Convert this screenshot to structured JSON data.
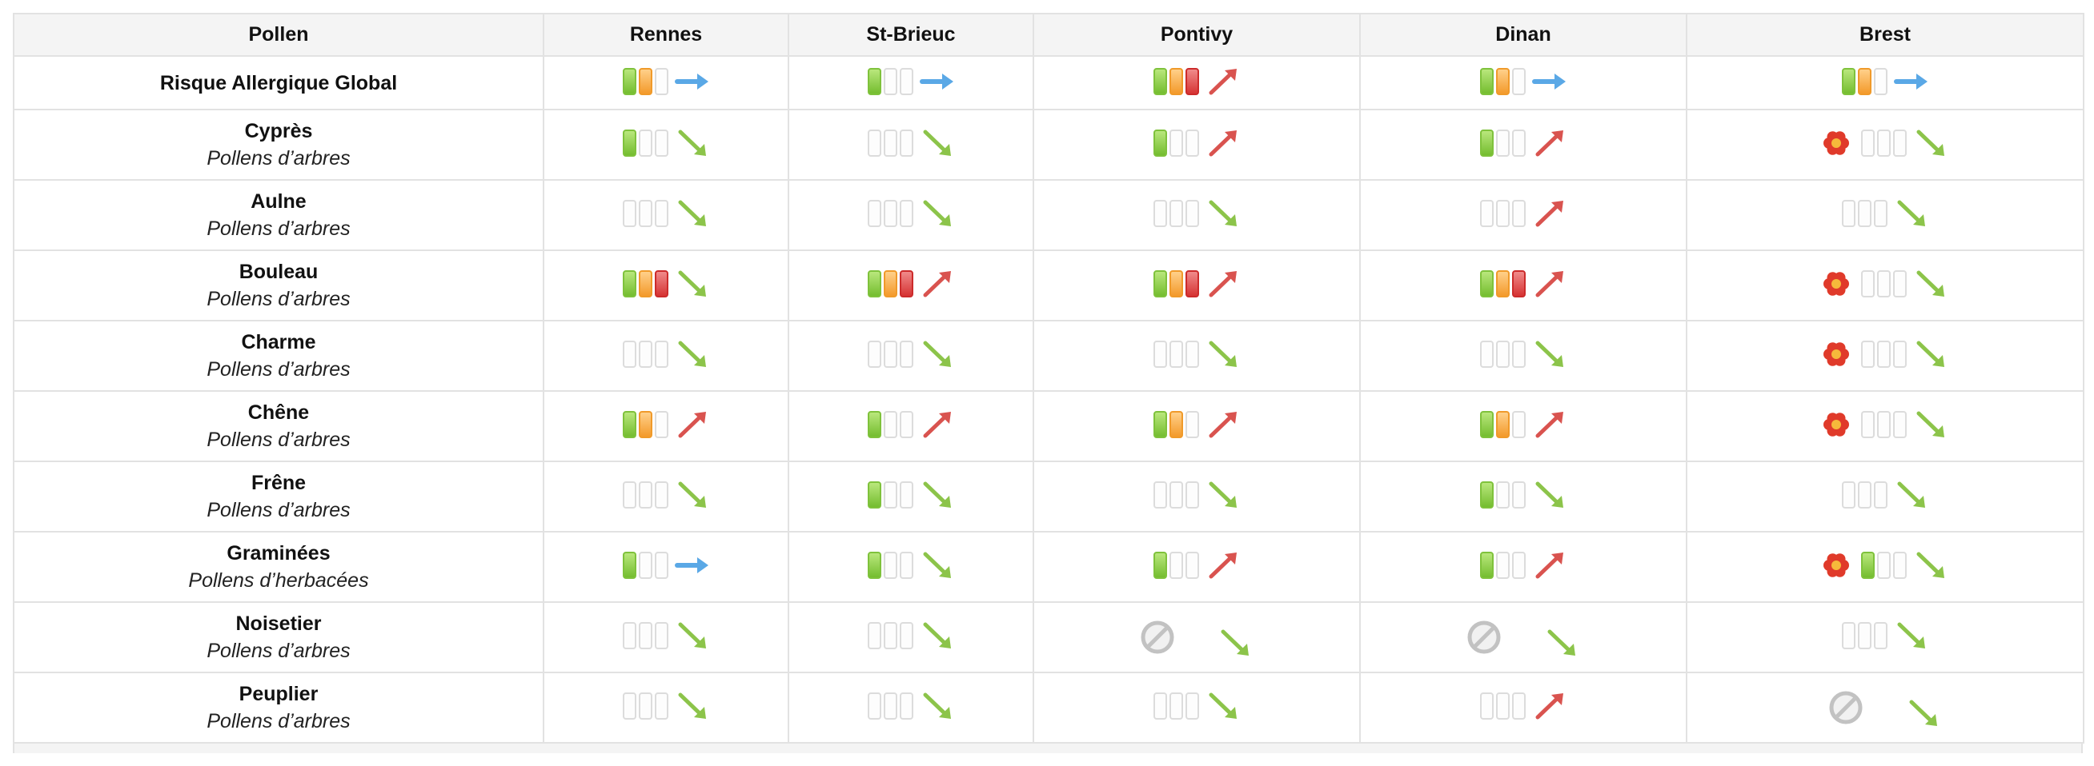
{
  "table": {
    "headers": [
      "Pollen",
      "Rennes",
      "St-Brieuc",
      "Pontivy",
      "Dinan",
      "Brest"
    ],
    "rows": [
      {
        "name": "Risque Allergique Global",
        "category": "",
        "cells": [
          {
            "level": 2,
            "trend": "stable"
          },
          {
            "level": 1,
            "trend": "stable"
          },
          {
            "level": 3,
            "trend": "up"
          },
          {
            "level": 2,
            "trend": "stable"
          },
          {
            "level": 2,
            "trend": "stable"
          }
        ]
      },
      {
        "name": "Cyprès",
        "category": "Pollens d’arbres",
        "cells": [
          {
            "level": 1,
            "trend": "down"
          },
          {
            "level": 0,
            "trend": "down"
          },
          {
            "level": 1,
            "trend": "up"
          },
          {
            "level": 1,
            "trend": "up"
          },
          {
            "level": 0,
            "trend": "down",
            "flower": true
          }
        ]
      },
      {
        "name": "Aulne",
        "category": "Pollens d’arbres",
        "cells": [
          {
            "level": 0,
            "trend": "down"
          },
          {
            "level": 0,
            "trend": "down"
          },
          {
            "level": 0,
            "trend": "down"
          },
          {
            "level": 0,
            "trend": "up"
          },
          {
            "level": 0,
            "trend": "down"
          }
        ]
      },
      {
        "name": "Bouleau",
        "category": "Pollens d’arbres",
        "cells": [
          {
            "level": 3,
            "trend": "down"
          },
          {
            "level": 3,
            "trend": "up"
          },
          {
            "level": 3,
            "trend": "up"
          },
          {
            "level": 3,
            "trend": "up"
          },
          {
            "level": 0,
            "trend": "down",
            "flower": true
          }
        ]
      },
      {
        "name": "Charme",
        "category": "Pollens d’arbres",
        "cells": [
          {
            "level": 0,
            "trend": "down"
          },
          {
            "level": 0,
            "trend": "down"
          },
          {
            "level": 0,
            "trend": "down"
          },
          {
            "level": 0,
            "trend": "down"
          },
          {
            "level": 0,
            "trend": "down",
            "flower": true
          }
        ]
      },
      {
        "name": "Chêne",
        "category": "Pollens d’arbres",
        "cells": [
          {
            "level": 2,
            "trend": "up"
          },
          {
            "level": 1,
            "trend": "up"
          },
          {
            "level": 2,
            "trend": "up"
          },
          {
            "level": 2,
            "trend": "up"
          },
          {
            "level": 0,
            "trend": "down",
            "flower": true
          }
        ]
      },
      {
        "name": "Frêne",
        "category": "Pollens d’arbres",
        "cells": [
          {
            "level": 0,
            "trend": "down"
          },
          {
            "level": 1,
            "trend": "down"
          },
          {
            "level": 0,
            "trend": "down"
          },
          {
            "level": 1,
            "trend": "down"
          },
          {
            "level": 0,
            "trend": "down"
          }
        ]
      },
      {
        "name": "Graminées",
        "category": "Pollens d’herbacées",
        "cells": [
          {
            "level": 1,
            "trend": "stable"
          },
          {
            "level": 1,
            "trend": "down"
          },
          {
            "level": 1,
            "trend": "up"
          },
          {
            "level": 1,
            "trend": "up"
          },
          {
            "level": 1,
            "trend": "down",
            "flower": true
          }
        ]
      },
      {
        "name": "Noisetier",
        "category": "Pollens d’arbres",
        "cells": [
          {
            "level": 0,
            "trend": "down"
          },
          {
            "level": 0,
            "trend": "down"
          },
          {
            "na": true,
            "trend": "down"
          },
          {
            "na": true,
            "trend": "down"
          },
          {
            "level": 0,
            "trend": "down"
          }
        ]
      },
      {
        "name": "Peuplier",
        "category": "Pollens d’arbres",
        "cells": [
          {
            "level": 0,
            "trend": "down"
          },
          {
            "level": 0,
            "trend": "down"
          },
          {
            "level": 0,
            "trend": "down"
          },
          {
            "level": 0,
            "trend": "up"
          },
          {
            "na": true,
            "trend": "down"
          }
        ]
      }
    ]
  },
  "icons": {
    "trend_up": "arrow-up-right-icon",
    "trend_down": "arrow-down-right-icon",
    "trend_stable": "arrow-right-icon",
    "flower": "flower-icon",
    "not_available": "no-data-icon"
  },
  "colors": {
    "level_low": "#7fc23c",
    "level_mid": "#f39a2b",
    "level_high": "#d63333",
    "trend_up": "#d9534f",
    "trend_down": "#8cc44a",
    "trend_stable": "#5aa8e6",
    "flower": "#e03a2a"
  }
}
